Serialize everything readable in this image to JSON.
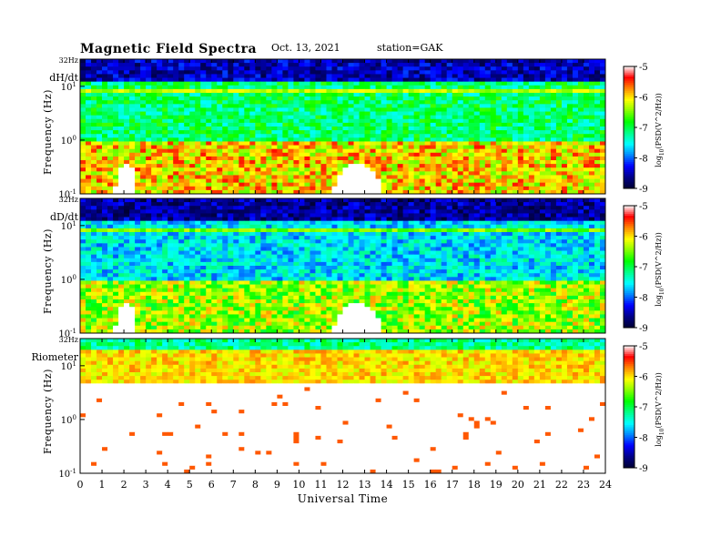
{
  "header": {
    "title": "Magnetic Field Spectra",
    "date": "Oct. 13, 2021",
    "station": "station=GAK"
  },
  "chart_data": [
    {
      "type": "heatmap",
      "panel_label": "dH/dt",
      "ylabel": "Frequency (Hz)",
      "xlabel": "Universal Time",
      "x_ticks": [
        "0",
        "1",
        "2",
        "3",
        "4",
        "5",
        "6",
        "7",
        "8",
        "9",
        "10",
        "11",
        "12",
        "13",
        "14",
        "15",
        "16",
        "17",
        "18",
        "19",
        "20",
        "21",
        "22",
        "23",
        "24"
      ],
      "xlim": [
        0,
        24
      ],
      "y_top_label": "32Hz",
      "y_ticks": [
        {
          "mant": "10",
          "exp": "1",
          "value": 10
        },
        {
          "mant": "10",
          "exp": "0",
          "value": 1
        },
        {
          "mant": "10",
          "exp": "-1",
          "value": 0.1
        }
      ],
      "ylim": [
        0.1,
        32
      ],
      "yscale": "log",
      "colorbar": {
        "ticks": [
          "-5",
          "-6",
          "-7",
          "-8",
          "-9"
        ],
        "range": [
          -9,
          -5
        ],
        "label": "log(PSD(V^2/Hz))",
        "label_prefix": "log",
        "label_sub": "10",
        "label_main": "(PSD(V^2/Hz))"
      },
      "features": {
        "top_band": -8.5,
        "line_near_8Hz": -6.3,
        "mid_band_1_10Hz": -7.1,
        "low_band_below_1Hz": -6.0,
        "white_saturated_regions_UT": [
          [
            1.6,
            2.6
          ],
          [
            11.6,
            13.8
          ]
        ]
      }
    },
    {
      "type": "heatmap",
      "panel_label": "dD/dt",
      "ylabel": "Frequency (Hz)",
      "xlabel": "Universal Time",
      "x_ticks": [
        "0",
        "1",
        "2",
        "3",
        "4",
        "5",
        "6",
        "7",
        "8",
        "9",
        "10",
        "11",
        "12",
        "13",
        "14",
        "15",
        "16",
        "17",
        "18",
        "19",
        "20",
        "21",
        "22",
        "23",
        "24"
      ],
      "xlim": [
        0,
        24
      ],
      "y_top_label": "32Hz",
      "y_ticks": [
        {
          "mant": "10",
          "exp": "1",
          "value": 10
        },
        {
          "mant": "10",
          "exp": "0",
          "value": 1
        },
        {
          "mant": "10",
          "exp": "-1",
          "value": 0.1
        }
      ],
      "ylim": [
        0.1,
        32
      ],
      "yscale": "log",
      "colorbar": {
        "ticks": [
          "-5",
          "-6",
          "-7",
          "-8",
          "-9"
        ],
        "range": [
          -9,
          -5
        ],
        "label": "log(PSD(V^2/Hz))",
        "label_prefix": "log",
        "label_sub": "10",
        "label_main": "(PSD(V^2/Hz))"
      },
      "features": {
        "top_band": -8.6,
        "line_near_8Hz": -6.5,
        "mid_band_1_10Hz": -7.6,
        "low_band_below_1Hz": -6.4,
        "white_saturated_regions_UT": [
          [
            1.6,
            2.6
          ],
          [
            11.6,
            13.8
          ]
        ]
      }
    },
    {
      "type": "heatmap",
      "panel_label": "Riometer",
      "ylabel": "Frequency (Hz)",
      "xlabel": "Universal Time",
      "x_ticks": [
        "0",
        "1",
        "2",
        "3",
        "4",
        "5",
        "6",
        "7",
        "8",
        "9",
        "10",
        "11",
        "12",
        "13",
        "14",
        "15",
        "16",
        "17",
        "18",
        "19",
        "20",
        "21",
        "22",
        "23",
        "24"
      ],
      "xlim": [
        0,
        24
      ],
      "y_top_label": "32Hz",
      "y_ticks": [
        {
          "mant": "10",
          "exp": "1",
          "value": 10
        },
        {
          "mant": "10",
          "exp": "0",
          "value": 1
        },
        {
          "mant": "10",
          "exp": "-1",
          "value": 0.1
        }
      ],
      "ylim": [
        0.1,
        32
      ],
      "yscale": "log",
      "colorbar": {
        "ticks": [
          "-5",
          "-6",
          "-7",
          "-8",
          "-9"
        ],
        "range": [
          -9,
          -5
        ],
        "label": "log(PSD(V^2/Hz))",
        "label_prefix": "log",
        "label_sub": "10",
        "label_main": "(PSD(V^2/Hz))"
      },
      "features": {
        "top_band": -7.2,
        "band_10Hz": -6.0,
        "below_5Hz": "white (>-5, saturated)"
      }
    }
  ],
  "colors": {
    "scale": [
      "#000033",
      "#000088",
      "#0000ff",
      "#0088ff",
      "#00ffff",
      "#00ff88",
      "#00ff00",
      "#88ff00",
      "#ffff00",
      "#ff8800",
      "#ff0000",
      "#ffffff"
    ]
  }
}
